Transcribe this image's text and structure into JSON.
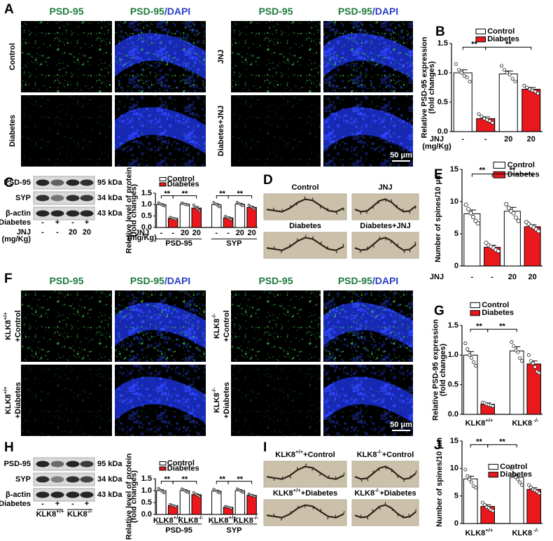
{
  "panels": {
    "A": {
      "label": "A",
      "columns": [
        [
          "PSD-95"
        ],
        [
          "PSD-95",
          "/DAPI"
        ],
        [
          "PSD-95"
        ],
        [
          "PSD-95",
          "/DAPI"
        ]
      ],
      "rows": [
        "Control",
        "Diabetes",
        "JNJ",
        "Diabetes+JNJ"
      ],
      "scale_bar": "50 μm"
    },
    "C": {
      "label": "C",
      "blot_rows": [
        "PSD-95",
        "SYP",
        "β-actin"
      ],
      "kda": [
        "95 kDa",
        "34 kDa",
        "43 kDa"
      ],
      "conditions": [
        {
          "name": "Diabetes",
          "values": [
            "-",
            "+",
            "-",
            "+"
          ]
        },
        {
          "name": "JNJ",
          "unit": "(mg/Kg)",
          "values": [
            "-",
            "-",
            "20",
            "20"
          ]
        }
      ]
    },
    "D": {
      "label": "D",
      "images": [
        "Control",
        "JNJ",
        "Diabetes",
        "Diabetes+JNJ"
      ]
    },
    "F": {
      "label": "F",
      "columns": [
        [
          "PSD-95"
        ],
        [
          "PSD-95",
          "/DAPI"
        ],
        [
          "PSD-95"
        ],
        [
          "PSD-95",
          "/DAPI"
        ]
      ],
      "rows": [
        {
          "text": "KLK8",
          "sup": "+/+",
          "line2": "+Control"
        },
        {
          "text": "KLK8",
          "sup": "+/+",
          "line2": "+Diabetes"
        },
        {
          "text": "KLK8",
          "sup": "-/-",
          "line2": "+Control"
        },
        {
          "text": "KLK8",
          "sup": "-/-",
          "line2": "+Diabetes"
        }
      ],
      "scale_bar": "50 μm"
    },
    "H": {
      "label": "H",
      "blot_rows": [
        "PSD-95",
        "SYP",
        "β-actin"
      ],
      "kda": [
        "95 kDa",
        "34 kDa",
        "43 kDa"
      ],
      "conditions": [
        {
          "name": "Diabetes",
          "values": [
            "-",
            "+",
            "-",
            "+"
          ]
        }
      ],
      "genotypes": [
        {
          "text": "KLK8",
          "sup": "+/+"
        },
        {
          "text": "KLK8",
          "sup": "-/-"
        }
      ]
    },
    "I": {
      "label": "I",
      "images": [
        {
          "text": "KLK8",
          "sup": "+/+",
          "line2": "+Control"
        },
        {
          "text": "KLK8",
          "sup": "-/-",
          "line2": "+Control"
        },
        {
          "text": "KLK8",
          "sup": "+/+",
          "line2": "+Diabetes"
        },
        {
          "text": "KLK8",
          "sup": "-/-",
          "line2": "+Diabetes"
        }
      ]
    }
  },
  "chart_data": [
    {
      "type": "bar",
      "panel": "B",
      "y_label": [
        "Relative PSD-95 expression",
        "(fold changes)"
      ],
      "ylim": [
        0,
        1.5
      ],
      "yticks": [
        {
          "value": 0,
          "label": "0.0"
        },
        0.5,
        {
          "value": 1,
          "label": "1.0"
        },
        1.5
      ],
      "categories": [
        "-",
        "-",
        "20",
        "20"
      ],
      "category_title": [
        "JNJ",
        "(mg/Kg)"
      ],
      "series": [
        {
          "name": "Control",
          "color": "#ffffff",
          "values": [
            1.0,
            null,
            0.98,
            null
          ],
          "errors": [
            0.05,
            null,
            0.05,
            null
          ],
          "points": [
            [
              1.15,
              1.05,
              1.0,
              0.95,
              0.92,
              0.85
            ],
            null,
            [
              1.12,
              1.05,
              1.0,
              0.97,
              0.9,
              0.85
            ],
            null
          ]
        },
        {
          "name": "Diabetes",
          "color": "#e8181d",
          "values": [
            null,
            0.22,
            null,
            0.72
          ],
          "errors": [
            null,
            0.03,
            null,
            0.03
          ],
          "points": [
            null,
            [
              0.3,
              0.26,
              0.22,
              0.2,
              0.18,
              0.15
            ],
            null,
            [
              0.78,
              0.75,
              0.72,
              0.7,
              0.68,
              0.65
            ]
          ]
        }
      ],
      "significance": [
        {
          "bars": [
            0,
            1
          ],
          "label": "**"
        },
        {
          "bars": [
            1,
            3
          ],
          "label": "**"
        }
      ]
    },
    {
      "type": "bar",
      "y_label": [
        "Relative level of protein",
        "(fold changes)"
      ],
      "ylim": [
        0,
        1.5
      ],
      "yticks": [
        {
          "value": 0,
          "label": "0.0"
        },
        0.5,
        {
          "value": 1,
          "label": "1.0"
        },
        1.5
      ],
      "categories": [
        "-",
        "-",
        "20",
        "20",
        "-",
        "-",
        "20",
        "20"
      ],
      "category_title": [
        "JNJ",
        "(mg/Kg)"
      ],
      "groups": [
        "PSD-95",
        "SYP"
      ],
      "series": [
        {
          "name": "Control",
          "color": "#ffffff",
          "values": [
            1.0,
            null,
            1.02,
            null,
            1.0,
            null,
            1.02,
            null
          ],
          "errors": [
            0.04,
            null,
            0.03,
            null,
            0.05,
            null,
            0.04,
            null
          ],
          "points": [
            [
              1.08,
              1.04,
              1.0,
              0.97,
              0.94
            ],
            null,
            [
              1.08,
              1.05,
              1.02,
              1.0,
              0.98
            ],
            null,
            [
              1.1,
              1.05,
              1.0,
              0.95,
              0.9
            ],
            null,
            [
              1.1,
              1.06,
              1.02,
              0.98,
              0.95
            ],
            null
          ]
        },
        {
          "name": "Diabetes",
          "color": "#e8181d",
          "values": [
            null,
            0.4,
            null,
            0.85,
            null,
            0.42,
            null,
            0.88
          ],
          "errors": [
            null,
            0.03,
            null,
            0.06,
            null,
            0.04,
            null,
            0.05
          ],
          "points": [
            null,
            [
              0.45,
              0.42,
              0.4,
              0.38,
              0.35
            ],
            null,
            [
              0.98,
              0.9,
              0.85,
              0.8,
              0.72
            ],
            null,
            [
              0.5,
              0.45,
              0.42,
              0.38,
              0.35
            ],
            null,
            [
              0.98,
              0.92,
              0.88,
              0.84,
              0.8
            ]
          ]
        }
      ],
      "significance": [
        {
          "bars": [
            0,
            1
          ],
          "label": "**"
        },
        {
          "bars": [
            1,
            3
          ],
          "label": "**"
        },
        {
          "bars": [
            4,
            5
          ],
          "label": "**"
        },
        {
          "bars": [
            5,
            7
          ],
          "label": "**"
        }
      ]
    },
    {
      "type": "bar",
      "panel": "E",
      "y_label": [
        "Number of spines/10 μm"
      ],
      "ylim": [
        0,
        15
      ],
      "yticks": [
        0,
        5,
        10,
        15
      ],
      "categories": [
        "-",
        "-",
        "20",
        "20"
      ],
      "category_title": [
        "JNJ"
      ],
      "series": [
        {
          "name": "Control",
          "color": "#ffffff",
          "values": [
            8.1,
            null,
            8.5,
            null
          ],
          "errors": [
            0.6,
            null,
            0.6,
            null
          ],
          "points": [
            [
              9.5,
              8.8,
              8.2,
              7.6,
              7.0,
              6.6
            ],
            null,
            [
              9.6,
              9.0,
              8.5,
              8.2,
              7.5,
              7.0
            ],
            null
          ]
        },
        {
          "name": "Diabetes",
          "color": "#e8181d",
          "values": [
            null,
            2.9,
            null,
            6.1
          ],
          "errors": [
            null,
            0.3,
            null,
            0.3
          ],
          "points": [
            null,
            [
              3.6,
              3.2,
              3.0,
              2.8,
              2.5,
              2.3
            ],
            null,
            [
              6.8,
              6.5,
              6.2,
              6.0,
              5.7,
              5.4
            ]
          ]
        }
      ],
      "significance": [
        {
          "bars": [
            0,
            1
          ],
          "label": "**"
        },
        {
          "bars": [
            1,
            3
          ],
          "label": "**"
        }
      ]
    },
    {
      "type": "bar",
      "panel": "G",
      "y_label": [
        "Relative PSD-95 expression",
        "(fold changes)"
      ],
      "ylim": [
        0,
        1.5
      ],
      "yticks": [
        {
          "value": 0,
          "label": "0.0"
        },
        0.5,
        {
          "value": 1,
          "label": "1.0"
        },
        1.5
      ],
      "categories": [
        null,
        null,
        null,
        null
      ],
      "subgroups": [
        {
          "text": "KLK8",
          "sup": "+/+"
        },
        {
          "text": "KLK8",
          "sup": " -/-"
        }
      ],
      "series": [
        {
          "name": "Control",
          "color": "#ffffff",
          "values": [
            1.0,
            null,
            1.07,
            null
          ],
          "errors": [
            0.06,
            null,
            0.07,
            null
          ],
          "points": [
            [
              1.2,
              1.1,
              1.0,
              0.95,
              0.88,
              0.82
            ],
            null,
            [
              1.22,
              1.15,
              1.08,
              1.05,
              0.95,
              0.9
            ],
            null
          ]
        },
        {
          "name": "Diabetes",
          "color": "#e8181d",
          "values": [
            null,
            0.17,
            null,
            0.85
          ],
          "errors": [
            null,
            0.02,
            null,
            0.05
          ],
          "points": [
            null,
            [
              0.2,
              0.19,
              0.17,
              0.16,
              0.15,
              0.14
            ],
            null,
            [
              1.0,
              0.9,
              0.86,
              0.8,
              0.72,
              0.7
            ]
          ]
        }
      ],
      "significance": [
        {
          "bars": [
            0,
            1
          ],
          "label": "**"
        },
        {
          "bars": [
            1,
            2
          ],
          "label": "**"
        }
      ]
    },
    {
      "type": "bar",
      "y_label": [
        "Relative level of protein",
        "(fold changes)"
      ],
      "ylim": [
        0,
        1.5
      ],
      "yticks": [
        {
          "value": 0,
          "label": "0.0"
        },
        0.5,
        {
          "value": 1,
          "label": "1.0"
        },
        1.5
      ],
      "categories": [
        null,
        null,
        null,
        null,
        null,
        null,
        null,
        null
      ],
      "groups": [
        "PSD-95",
        "SYP"
      ],
      "subgroups": [
        {
          "text": "KLK8",
          "sup": "+/+"
        },
        {
          "text": "KLK8",
          "sup": "-/-"
        },
        {
          "text": "KLK8",
          "sup": "+/+"
        },
        {
          "text": "KLK8",
          "sup": "-/-"
        }
      ],
      "series": [
        {
          "name": "Control",
          "color": "#ffffff",
          "values": [
            1.0,
            null,
            1.0,
            null,
            0.98,
            null,
            1.0,
            null
          ],
          "errors": [
            0.04,
            null,
            0.04,
            null,
            0.04,
            null,
            0.04,
            null
          ],
          "points": [
            [
              1.1,
              1.04,
              1.0,
              0.95,
              0.9
            ],
            null,
            [
              1.08,
              1.04,
              1.0,
              0.96,
              0.92
            ],
            null,
            [
              1.06,
              1.02,
              0.98,
              0.94,
              0.9
            ],
            null,
            [
              1.08,
              1.04,
              1.0,
              0.96,
              0.92
            ],
            null
          ]
        },
        {
          "name": "Diabetes",
          "color": "#e8181d",
          "values": [
            null,
            0.37,
            null,
            0.83,
            null,
            0.3,
            null,
            0.8
          ],
          "errors": [
            null,
            0.02,
            null,
            0.04,
            null,
            0.02,
            null,
            0.03
          ],
          "points": [
            null,
            [
              0.42,
              0.39,
              0.37,
              0.35,
              0.33
            ],
            null,
            [
              0.92,
              0.87,
              0.83,
              0.8,
              0.75
            ],
            null,
            [
              0.34,
              0.32,
              0.3,
              0.28,
              0.26
            ],
            null,
            [
              0.86,
              0.82,
              0.8,
              0.78,
              0.75
            ]
          ]
        }
      ],
      "significance": [
        {
          "bars": [
            0,
            1
          ],
          "label": "**"
        },
        {
          "bars": [
            1,
            3
          ],
          "label": "**"
        },
        {
          "bars": [
            4,
            5
          ],
          "label": "**"
        },
        {
          "bars": [
            5,
            7
          ],
          "label": "**"
        }
      ]
    },
    {
      "type": "bar",
      "panel": "J",
      "y_label": [
        "Number of spines/10 μm"
      ],
      "ylim": [
        0,
        15
      ],
      "yticks": [
        0,
        5,
        10,
        15
      ],
      "categories": [
        null,
        null,
        null,
        null
      ],
      "subgroups": [
        {
          "text": "KLK8",
          "sup": "+/+"
        },
        {
          "text": "KLK8",
          "sup": " -/-"
        }
      ],
      "series": [
        {
          "name": "Control",
          "color": "#ffffff",
          "values": [
            8.1,
            null,
            8.4,
            null
          ],
          "errors": [
            0.5,
            null,
            0.5,
            null
          ],
          "points": [
            [
              9.8,
              8.6,
              8.0,
              7.5,
              6.8,
              6.5
            ],
            null,
            [
              10,
              9.0,
              8.4,
              8.0,
              7.5,
              7.0
            ],
            null
          ]
        },
        {
          "name": "Diabetes",
          "color": "#e8181d",
          "values": [
            null,
            3.1,
            null,
            6.2
          ],
          "errors": [
            null,
            0.3,
            null,
            0.3
          ],
          "points": [
            null,
            [
              3.8,
              3.4,
              3.0,
              2.8,
              2.5,
              2.3
            ],
            null,
            [
              7.0,
              6.6,
              6.2,
              6.0,
              5.8,
              5.5
            ]
          ]
        }
      ],
      "significance": [
        {
          "bars": [
            0,
            1
          ],
          "label": "**"
        },
        {
          "bars": [
            1,
            2
          ],
          "label": "**"
        }
      ]
    }
  ]
}
